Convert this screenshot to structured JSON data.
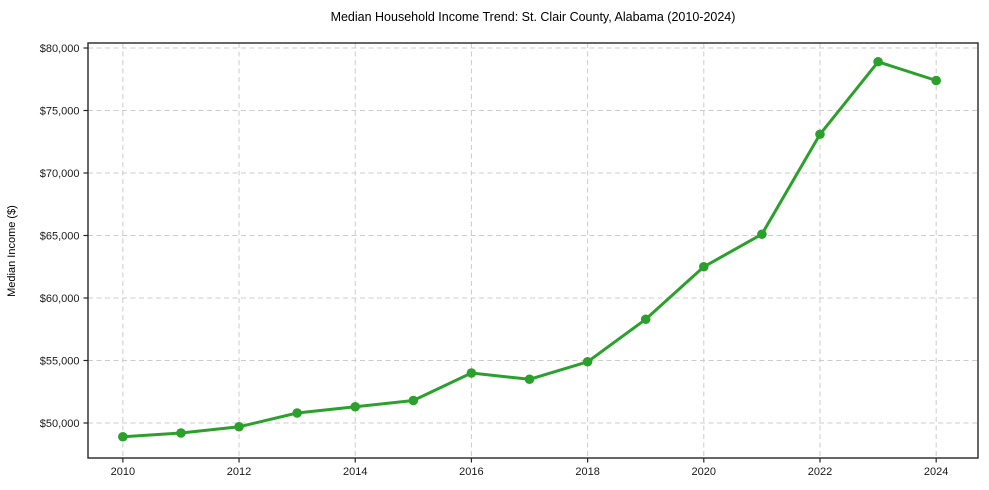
{
  "chart_data": {
    "type": "line",
    "title": "Median Household Income Trend: St. Clair County, Alabama (2010-2024)",
    "xlabel": "",
    "ylabel": "Median Income ($)",
    "series_name": "Median household income",
    "x": [
      2010,
      2011,
      2012,
      2013,
      2014,
      2015,
      2016,
      2017,
      2018,
      2019,
      2020,
      2021,
      2022,
      2023,
      2024
    ],
    "values": [
      48900,
      49200,
      49700,
      50800,
      51300,
      51800,
      54000,
      53500,
      54900,
      58300,
      62500,
      65100,
      73100,
      78900,
      77400
    ],
    "x_ticks": [
      2010,
      2012,
      2014,
      2016,
      2018,
      2020,
      2022,
      2024
    ],
    "x_tick_labels": [
      "2010",
      "2012",
      "2014",
      "2016",
      "2018",
      "2020",
      "2022",
      "2024"
    ],
    "y_ticks": [
      50000,
      55000,
      60000,
      65000,
      70000,
      75000,
      80000
    ],
    "y_tick_labels": [
      "$50,000",
      "$55,000",
      "$60,000",
      "$65,000",
      "$70,000",
      "$75,000",
      "$80,000"
    ],
    "xlim": [
      2009.4,
      2024.72
    ],
    "ylim": [
      47200,
      80400
    ],
    "grid": true,
    "grid_style": "dashed",
    "legend": "none",
    "marker": "circle",
    "colors": {
      "line": "#2ca02c",
      "marker": "#2ca02c",
      "grid": "#cccccc",
      "axis": "#262626",
      "tick_text": "#1a1a1a",
      "title_text": "#000000",
      "background": "#ffffff"
    }
  }
}
